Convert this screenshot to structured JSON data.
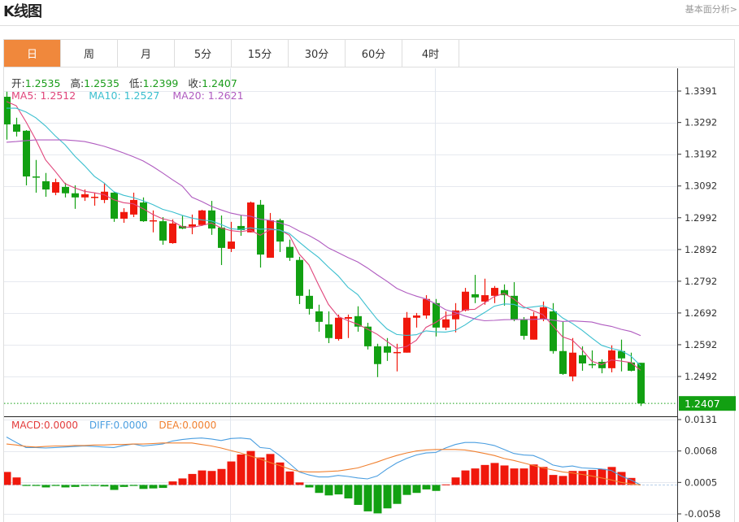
{
  "header": {
    "title": "K线图",
    "more_link": "基本面分析>"
  },
  "tabs": [
    {
      "label": "日",
      "active": true
    },
    {
      "label": "周"
    },
    {
      "label": "月"
    },
    {
      "label": "5分"
    },
    {
      "label": "15分"
    },
    {
      "label": "30分"
    },
    {
      "label": "60分"
    },
    {
      "label": "4时"
    }
  ],
  "info": {
    "open_label": "开:",
    "open": "1.2535",
    "high_label": "高:",
    "high": "1.2535",
    "low_label": "低:",
    "low": "1.2399",
    "close_label": "收:",
    "close": "1.2407"
  },
  "ma_info": {
    "ma5": "MA5: 1.2512",
    "ma10": "MA10: 1.2527",
    "ma20": "MA20: 1.2621"
  },
  "macd_info": {
    "macd": "MACD:0.0000",
    "diff": "DIFF:0.0000",
    "dea": "DEA:0.0000"
  },
  "colors": {
    "up": "#f0180c",
    "down": "#12a012",
    "accent": "#f0883c",
    "ma5": "#e0457b",
    "ma10": "#3bbfcf",
    "ma20": "#b05cc0",
    "diff": "#4a9ee0",
    "dea": "#f08030",
    "macd_label": "#e23b3b"
  },
  "chart_data": [
    {
      "type": "candlestick",
      "ylim": [
        1.2399,
        1.3391
      ],
      "y_ticks": [
        "1.3391",
        "1.3292",
        "1.3192",
        "1.3092",
        "1.2992",
        "1.2892",
        "1.2792",
        "1.2692",
        "1.2592",
        "1.2492"
      ],
      "last_price_label": "1.2407",
      "grid": true,
      "ohlc": [
        [
          1.3373,
          1.3389,
          1.3238,
          1.3286
        ],
        [
          1.3286,
          1.3307,
          1.3248,
          1.3263
        ],
        [
          1.3266,
          1.3268,
          1.3094,
          1.3122
        ],
        [
          1.3122,
          1.3174,
          1.3071,
          1.312
        ],
        [
          1.3107,
          1.3133,
          1.3058,
          1.3081
        ],
        [
          1.3071,
          1.3115,
          1.3063,
          1.3104
        ],
        [
          1.3089,
          1.3102,
          1.3056,
          1.3069
        ],
        [
          1.3069,
          1.3094,
          1.302,
          1.3056
        ],
        [
          1.3056,
          1.3081,
          1.3045,
          1.3066
        ],
        [
          1.3056,
          1.3071,
          1.303,
          1.3058
        ],
        [
          1.3048,
          1.3102,
          1.3038,
          1.3074
        ],
        [
          1.3071,
          1.3074,
          1.2979,
          1.2989
        ],
        [
          1.2989,
          1.3022,
          1.2976,
          1.301
        ],
        [
          1.3002,
          1.3071,
          1.2994,
          1.3048
        ],
        [
          1.304,
          1.3056,
          1.2979,
          1.2981
        ],
        [
          1.2981,
          1.3015,
          1.2946,
          1.2984
        ],
        [
          1.2981,
          1.2994,
          1.2907,
          1.292
        ],
        [
          1.2912,
          1.2987,
          1.291,
          1.2974
        ],
        [
          1.2966,
          1.2999,
          1.2956,
          1.2958
        ],
        [
          1.2964,
          1.3002,
          1.294,
          1.2971
        ],
        [
          1.2969,
          1.3017,
          1.2966,
          1.3015
        ],
        [
          1.3015,
          1.3045,
          1.2938,
          1.2958
        ],
        [
          1.2961,
          1.2999,
          1.2843,
          1.2897
        ],
        [
          1.2894,
          1.2979,
          1.2884,
          1.2917
        ],
        [
          1.2966,
          1.2999,
          1.2935,
          1.2953
        ],
        [
          1.2946,
          1.3043,
          1.2946,
          1.304
        ],
        [
          1.3033,
          1.3048,
          1.2835,
          1.2876
        ],
        [
          1.2866,
          1.3007,
          1.2866,
          1.2984
        ],
        [
          1.2984,
          1.2989,
          1.2884,
          1.2917
        ],
        [
          1.29,
          1.2923,
          1.2856,
          1.2866
        ],
        [
          1.2859,
          1.2869,
          1.272,
          1.2746
        ],
        [
          1.2746,
          1.2766,
          1.2687,
          1.2705
        ],
        [
          1.2697,
          1.2718,
          1.2633,
          1.2664
        ],
        [
          1.2656,
          1.2697,
          1.2597,
          1.2613
        ],
        [
          1.261,
          1.2687,
          1.2605,
          1.2677
        ],
        [
          1.2674,
          1.2687,
          1.2613,
          1.2679
        ],
        [
          1.2682,
          1.2713,
          1.2633,
          1.2649
        ],
        [
          1.2649,
          1.2661,
          1.2577,
          1.2587
        ],
        [
          1.2587,
          1.2595,
          1.249,
          1.2531
        ],
        [
          1.2587,
          1.2613,
          1.2541,
          1.2567
        ],
        [
          1.2567,
          1.2595,
          1.2508,
          1.2569
        ],
        [
          1.2567,
          1.2695,
          1.2567,
          1.2677
        ],
        [
          1.2677,
          1.2692,
          1.2646,
          1.2684
        ],
        [
          1.2684,
          1.2748,
          1.2674,
          1.2736
        ],
        [
          1.2723,
          1.2736,
          1.2618,
          1.2646
        ],
        [
          1.2646,
          1.2697,
          1.2638,
          1.2672
        ],
        [
          1.2672,
          1.2723,
          1.2631,
          1.27
        ],
        [
          1.27,
          1.2771,
          1.2697,
          1.2759
        ],
        [
          1.2751,
          1.2812,
          1.2723,
          1.2741
        ],
        [
          1.2728,
          1.28,
          1.2718,
          1.2748
        ],
        [
          1.2746,
          1.2777,
          1.2723,
          1.2771
        ],
        [
          1.2764,
          1.2782,
          1.2715,
          1.2748
        ],
        [
          1.2746,
          1.2789,
          1.2666,
          1.2672
        ],
        [
          1.2672,
          1.2679,
          1.2608,
          1.262
        ],
        [
          1.2608,
          1.2695,
          1.2608,
          1.2682
        ],
        [
          1.2672,
          1.2728,
          1.2666,
          1.271
        ],
        [
          1.2697,
          1.2723,
          1.2564,
          1.2572
        ],
        [
          1.2572,
          1.2666,
          1.2497,
          1.25
        ],
        [
          1.2492,
          1.2613,
          1.2477,
          1.2567
        ],
        [
          1.2559,
          1.2587,
          1.251,
          1.2533
        ],
        [
          1.2531,
          1.2574,
          1.2518,
          1.2528
        ],
        [
          1.2538,
          1.2546,
          1.2502,
          1.2518
        ],
        [
          1.2518,
          1.259,
          1.2505,
          1.2574
        ],
        [
          1.2572,
          1.2608,
          1.2508,
          1.2549
        ],
        [
          1.2536,
          1.2567,
          1.2508,
          1.251
        ],
        [
          1.2535,
          1.2535,
          1.2399,
          1.2407
        ]
      ],
      "ma_series": [
        {
          "name": "MA5",
          "period": 5,
          "leading": [
            1.3358,
            1.3345,
            1.3294,
            1.3238
          ]
        },
        {
          "name": "MA10",
          "period": 10,
          "leading": [
            1.3337,
            1.3337,
            1.3325,
            1.3307,
            1.3281,
            1.325,
            1.3222,
            1.3186,
            1.3156
          ]
        },
        {
          "name": "MA20",
          "period": 20,
          "leading": [
            1.323,
            1.3232,
            1.3235,
            1.3237,
            1.3237,
            1.3237,
            1.3237,
            1.3235,
            1.3232,
            1.3225,
            1.3217,
            1.3207,
            1.3196,
            1.3184,
            1.3171,
            1.3153,
            1.3133,
            1.3112,
            1.3092
          ]
        }
      ]
    },
    {
      "type": "bar",
      "ylim": [
        -0.0058,
        0.0131
      ],
      "y_ticks": [
        "0.0131",
        "0.0068",
        "0.0005",
        "-0.0058"
      ],
      "macd": [
        0.0026,
        0.0015,
        -0.0002,
        -0.0002,
        -0.0005,
        -0.0002,
        -0.0005,
        -0.0004,
        -0.0002,
        -0.0002,
        -0.0003,
        -0.001,
        -0.0004,
        -0.0002,
        -0.0008,
        -0.0007,
        -0.0006,
        0.0007,
        0.0013,
        0.0022,
        0.0029,
        0.0028,
        0.0032,
        0.0047,
        0.0061,
        0.0068,
        0.0055,
        0.0062,
        0.0045,
        0.0027,
        0.0005,
        -0.0005,
        -0.0016,
        -0.0021,
        -0.0019,
        -0.0027,
        -0.004,
        -0.0053,
        -0.0057,
        -0.0047,
        -0.0038,
        -0.002,
        -0.0016,
        -0.0009,
        -0.0012,
        0.0001,
        0.0015,
        0.0029,
        0.0033,
        0.004,
        0.0044,
        0.0039,
        0.0033,
        0.0033,
        0.0041,
        0.0036,
        0.002,
        0.0018,
        0.0028,
        0.0028,
        0.003,
        0.0032,
        0.0036,
        0.0026,
        0.0014,
        0.0
      ],
      "diff": [
        0.0096,
        0.0085,
        0.0075,
        0.0075,
        0.0074,
        0.0075,
        0.0076,
        0.0077,
        0.0078,
        0.0077,
        0.0076,
        0.0075,
        0.0079,
        0.0082,
        0.0078,
        0.008,
        0.0082,
        0.0088,
        0.0091,
        0.0093,
        0.0094,
        0.0092,
        0.0089,
        0.0093,
        0.0094,
        0.0092,
        0.0075,
        0.0073,
        0.0059,
        0.0043,
        0.0026,
        0.002,
        0.0016,
        0.0016,
        0.0019,
        0.0017,
        0.0014,
        0.0012,
        0.0018,
        0.0032,
        0.0044,
        0.0053,
        0.006,
        0.0064,
        0.0065,
        0.0074,
        0.0081,
        0.0085,
        0.0085,
        0.0083,
        0.0079,
        0.0071,
        0.0063,
        0.006,
        0.0059,
        0.0051,
        0.004,
        0.0036,
        0.0038,
        0.0034,
        0.0033,
        0.0032,
        0.0029,
        0.0018,
        0.001,
        0.0
      ],
      "dea": [
        0.0082,
        0.008,
        0.0077,
        0.0076,
        0.0077,
        0.0078,
        0.0078,
        0.0079,
        0.0079,
        0.008,
        0.008,
        0.0081,
        0.0081,
        0.0082,
        0.0082,
        0.0083,
        0.0084,
        0.0084,
        0.0084,
        0.0084,
        0.0081,
        0.0078,
        0.0074,
        0.0069,
        0.0064,
        0.0058,
        0.0052,
        0.0045,
        0.0039,
        0.0032,
        0.0027,
        0.0026,
        0.0026,
        0.0027,
        0.0028,
        0.0031,
        0.0034,
        0.004,
        0.0046,
        0.0053,
        0.0059,
        0.0064,
        0.0068,
        0.007,
        0.0071,
        0.0071,
        0.0071,
        0.007,
        0.0067,
        0.0063,
        0.0059,
        0.0053,
        0.0049,
        0.0044,
        0.0039,
        0.0034,
        0.003,
        0.0026,
        0.0024,
        0.0021,
        0.0018,
        0.0014,
        0.001,
        0.0005,
        0.0002,
        0.0
      ]
    }
  ]
}
